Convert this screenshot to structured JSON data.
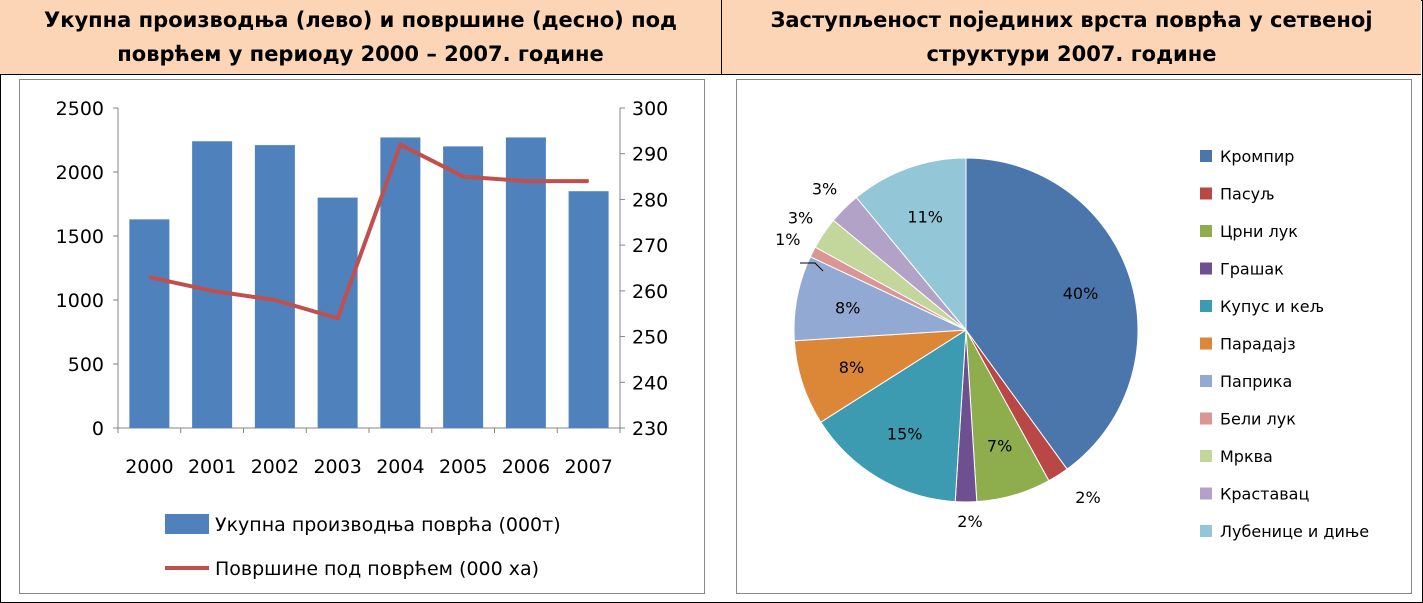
{
  "headers": {
    "left_line1": "Укупна производња (лево) и површине (десно) под",
    "left_line2": "поврћем у периоду 2000 – 2007. године",
    "right_line1": "Заступљеност појединих врста поврћа у сетвеној",
    "right_line2": "структури 2007. године"
  },
  "chart_data": [
    {
      "type": "bar",
      "categories": [
        "2000",
        "2001",
        "2002",
        "2003",
        "2004",
        "2005",
        "2006",
        "2007"
      ],
      "series": [
        {
          "name": "Укупна производња поврћа (000т)",
          "type": "bar",
          "axis": "left",
          "color": "#4f81bd",
          "values": [
            1630,
            2240,
            2210,
            1800,
            2270,
            2200,
            2270,
            1850
          ]
        },
        {
          "name": "Површине под поврћем (000 ха)",
          "type": "line",
          "axis": "right",
          "color": "#c0504d",
          "values": [
            263,
            260,
            258,
            254,
            292,
            285,
            284,
            284
          ]
        }
      ],
      "ylim_left": [
        0,
        2500
      ],
      "yticks_left": [
        "0",
        "500",
        "1000",
        "1500",
        "2000",
        "2500"
      ],
      "ylim_right": [
        230,
        300
      ],
      "yticks_right": [
        "230",
        "240",
        "250",
        "260",
        "270",
        "280",
        "290",
        "300"
      ],
      "grid": false,
      "legend": "bottom"
    },
    {
      "type": "pie",
      "slices": [
        {
          "name": "Кромпир",
          "value": 40,
          "label": "40%",
          "color": "#4a76ac"
        },
        {
          "name": "Пасуљ",
          "value": 2,
          "label": "2%",
          "color": "#b94745"
        },
        {
          "name": "Црни лук",
          "value": 7,
          "label": "7%",
          "color": "#8ead4c"
        },
        {
          "name": "Грашак",
          "value": 2,
          "label": "2%",
          "color": "#6e4f8f"
        },
        {
          "name": "Купус и кељ",
          "value": 15,
          "label": "15%",
          "color": "#3d9bb1"
        },
        {
          "name": "Парадајз",
          "value": 8,
          "label": "8%",
          "color": "#dc8638"
        },
        {
          "name": "Паприка",
          "value": 8,
          "label": "8%",
          "color": "#92a9d3"
        },
        {
          "name": "Бели лук",
          "value": 1,
          "label": "1%",
          "color": "#d99694"
        },
        {
          "name": "Мрква",
          "value": 3,
          "label": "3%",
          "color": "#c3d69b"
        },
        {
          "name": "Краставац",
          "value": 3,
          "label": "3%",
          "color": "#b2a2c7"
        },
        {
          "name": "Лубенице и диње",
          "value": 11,
          "label": "11%",
          "color": "#93c6d6"
        }
      ],
      "legend": "right"
    }
  ]
}
